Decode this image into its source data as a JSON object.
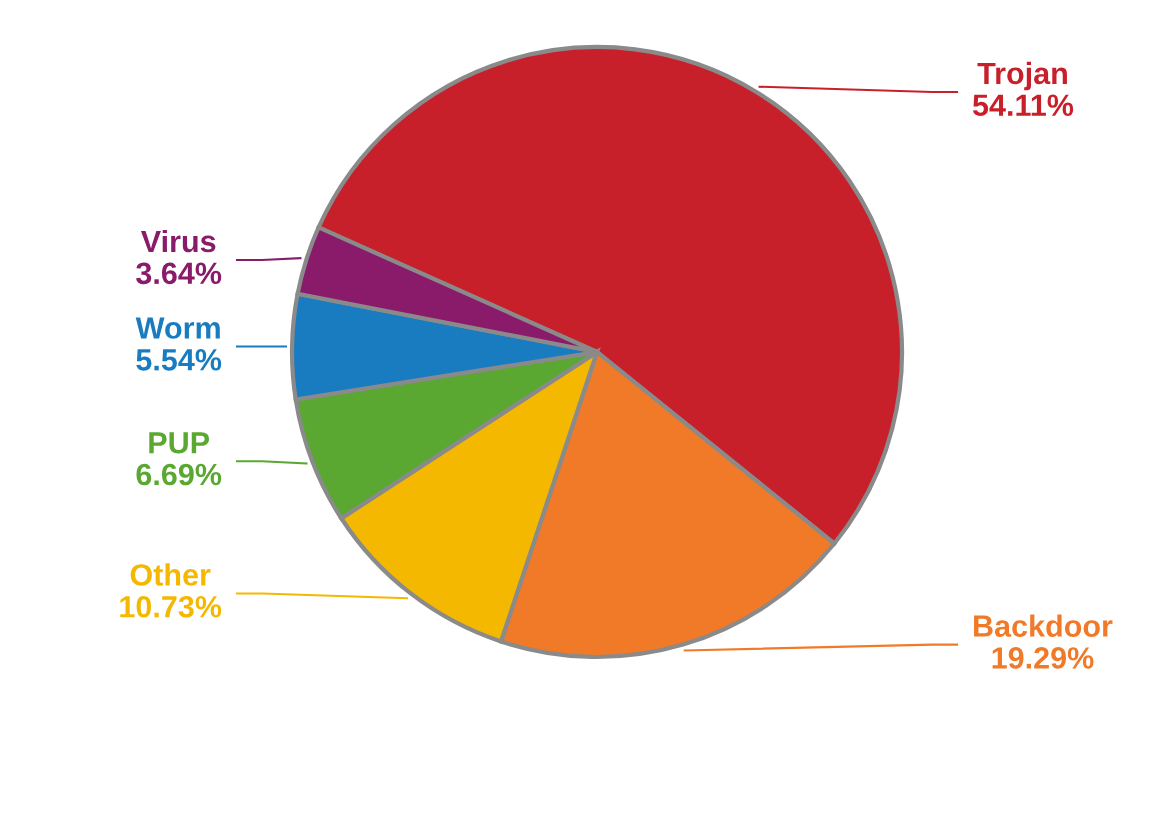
{
  "chart_data": {
    "type": "pie",
    "categories": [
      "Trojan",
      "Backdoor",
      "Other",
      "PUP",
      "Worm",
      "Virus"
    ],
    "values": [
      54.11,
      19.29,
      10.73,
      6.69,
      5.54,
      3.64
    ],
    "value_labels": [
      "54.11%",
      "19.29%",
      "10.73%",
      "6.69%",
      "5.54%",
      "3.64%"
    ],
    "colors": [
      "#c8202a",
      "#f07a28",
      "#f5b800",
      "#5aa832",
      "#1a7cc0",
      "#8a1a6a"
    ]
  }
}
